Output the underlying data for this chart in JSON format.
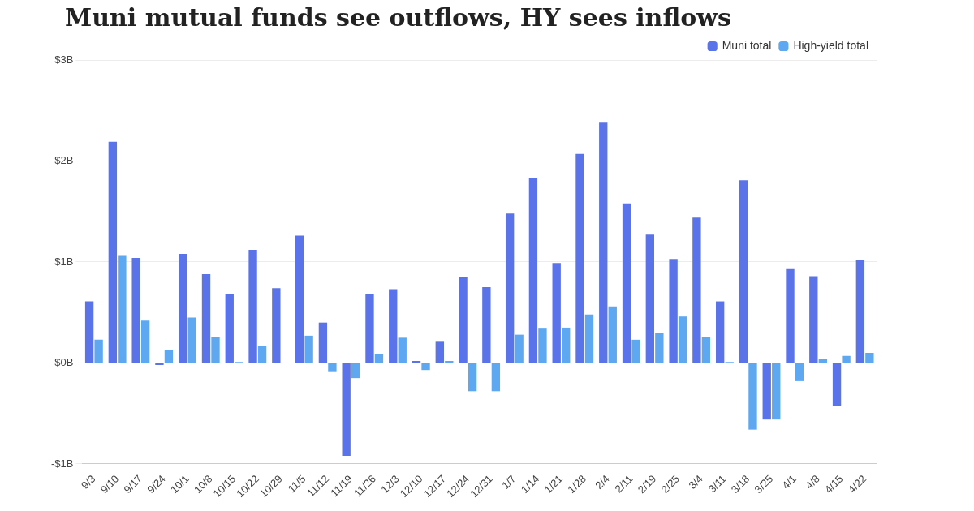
{
  "chart_data": {
    "type": "bar",
    "title": "Muni mutual funds see outflows, HY sees inflows",
    "categories": [
      "9/3",
      "9/10",
      "9/17",
      "9/24",
      "10/1",
      "10/8",
      "10/15",
      "10/22",
      "10/29",
      "11/5",
      "11/12",
      "11/19",
      "11/26",
      "12/3",
      "12/10",
      "12/17",
      "12/24",
      "12/31",
      "1/7",
      "1/14",
      "1/21",
      "1/28",
      "2/4",
      "2/11",
      "2/19",
      "2/25",
      "3/4",
      "3/11",
      "3/18",
      "3/25",
      "4/1",
      "4/8",
      "4/15",
      "4/22"
    ],
    "series": [
      {
        "name": "Muni total",
        "color": "#5b73e8",
        "values": [
          0.61,
          2.19,
          1.04,
          -0.02,
          1.08,
          0.88,
          0.68,
          1.12,
          0.74,
          1.26,
          0.4,
          -0.92,
          0.68,
          0.73,
          0.02,
          0.21,
          0.85,
          0.75,
          1.48,
          1.83,
          0.99,
          2.07,
          2.38,
          1.58,
          1.27,
          1.03,
          1.44,
          0.61,
          1.81,
          -0.56,
          0.93,
          0.86,
          -0.43,
          1.02
        ]
      },
      {
        "name": "High-yield total",
        "color": "#5ea8f2",
        "values": [
          0.23,
          1.06,
          0.42,
          0.13,
          0.45,
          0.26,
          0.01,
          0.17,
          0.0,
          0.27,
          -0.09,
          -0.15,
          0.09,
          0.25,
          -0.07,
          0.02,
          -0.28,
          -0.28,
          0.28,
          0.34,
          0.35,
          0.48,
          0.56,
          0.23,
          0.3,
          0.46,
          0.26,
          0.01,
          -0.66,
          -0.56,
          -0.18,
          0.04,
          0.07,
          0.1
        ]
      }
    ],
    "ylim": [
      -1,
      3
    ],
    "yticks": [
      {
        "value": -1,
        "label": "-$1B"
      },
      {
        "value": 0,
        "label": "$0B"
      },
      {
        "value": 1,
        "label": "$1B"
      },
      {
        "value": 2,
        "label": "$2B"
      },
      {
        "value": 3,
        "label": "$3B"
      }
    ],
    "grid": "y",
    "legend": "top right"
  }
}
